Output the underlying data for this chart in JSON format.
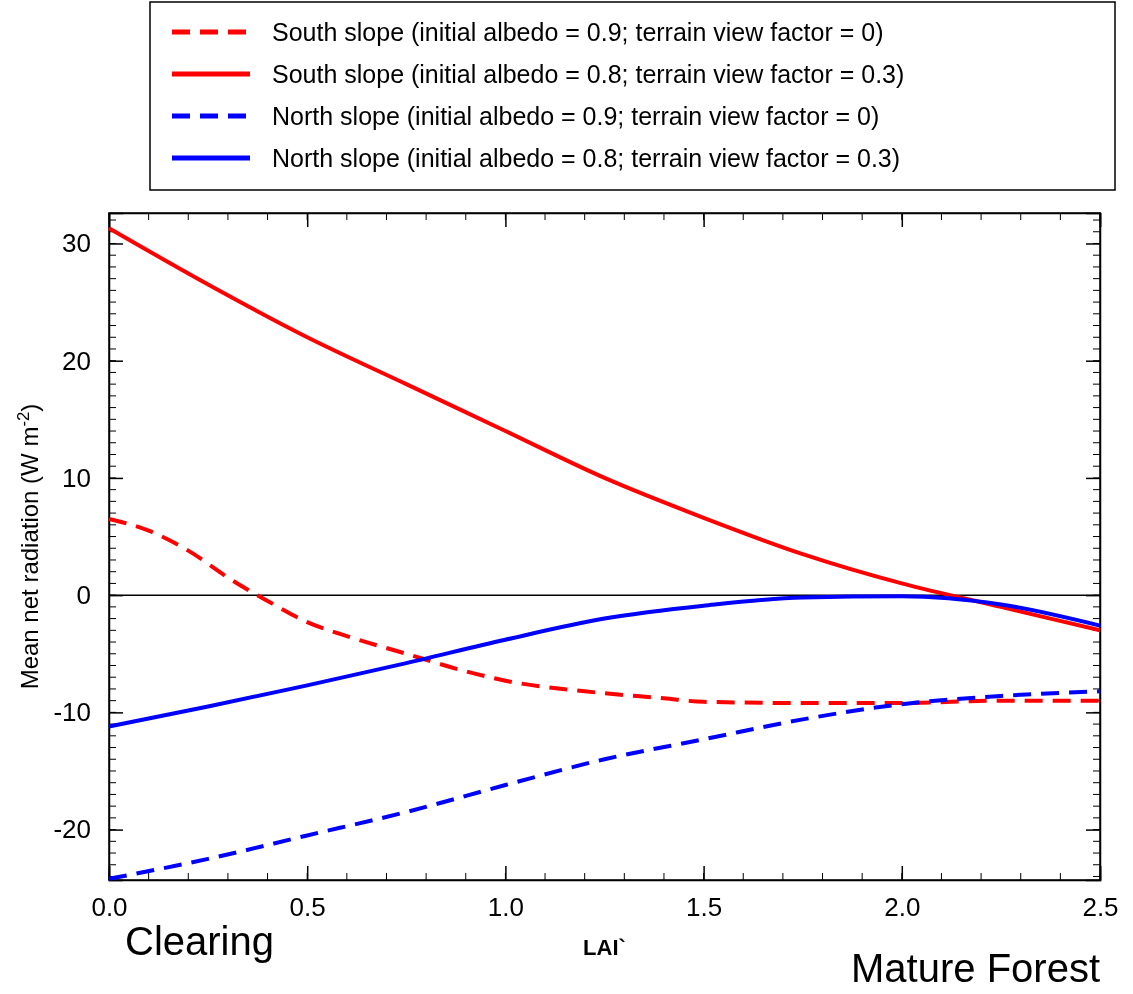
{
  "chart_data": {
    "type": "line",
    "xlabel": "LAI`",
    "ylabel": "Mean net radiation (W m$^{-2}$)",
    "xlim": [
      0,
      2.5
    ],
    "ylim": [
      -24.3,
      32.6
    ],
    "xticks": [
      {
        "value": 0,
        "label": "0.0"
      },
      {
        "value": 0.5,
        "label": "0.5"
      },
      {
        "value": 1,
        "label": "1.0"
      },
      {
        "value": 1.5,
        "label": "1.5"
      },
      {
        "value": 2,
        "label": "2.0"
      },
      {
        "value": 2.5,
        "label": "2.5"
      }
    ],
    "yticks": [
      -20,
      -10,
      0,
      10,
      20,
      30
    ],
    "legend": "top",
    "grid": false,
    "ref_lines": [
      {
        "axis": "y",
        "value": 0,
        "color": "#000000",
        "line_style": "solid"
      }
    ],
    "annotations": [
      "Clearing",
      "Mature Forest"
    ],
    "x": [
      0,
      0.25,
      0.5,
      0.75,
      1,
      1.25,
      1.5,
      1.75,
      2,
      2.25,
      2.5
    ],
    "series": [
      {
        "name": "South slope (initial albedo = 0.9; terrain view factor = 0)",
        "color": "#ff0000",
        "line_style": "dashed",
        "x": [
          0,
          0.1,
          0.2,
          0.3,
          0.4,
          0.5,
          0.6,
          0.75,
          0.9,
          1,
          1.2,
          1.4,
          1.5,
          1.75,
          2,
          2.25,
          2.5
        ],
        "values": [
          6.5,
          5.5,
          3.8,
          1.5,
          -0.5,
          -2.3,
          -3.5,
          -5,
          -6.5,
          -7.3,
          -8.2,
          -8.8,
          -9.1,
          -9.2,
          -9.2,
          -9,
          -9
        ]
      },
      {
        "name": "South slope (initial albedo = 0.8; terrain view factor = 0.3)",
        "color": "#ff0000",
        "line_style": "solid",
        "values": [
          31.3,
          26.5,
          22,
          18,
          14,
          10,
          6.6,
          3.5,
          1,
          -1,
          -3
        ]
      },
      {
        "name": "North slope (initial albedo = 0.9; terrain view factor = 0)",
        "color": "#0000ff",
        "line_style": "dashed",
        "values": [
          -24.2,
          -22.5,
          -20.5,
          -18.5,
          -16.2,
          -14,
          -12.3,
          -10.6,
          -9.3,
          -8.6,
          -8.2
        ]
      },
      {
        "name": "North slope (initial albedo = 0.8; terrain view factor = 0.3)",
        "color": "#0000ff",
        "line_style": "solid",
        "values": [
          -11.2,
          -9.5,
          -7.7,
          -5.8,
          -3.8,
          -2,
          -0.9,
          -0.2,
          -0.1,
          -0.8,
          -2.6
        ]
      }
    ]
  }
}
